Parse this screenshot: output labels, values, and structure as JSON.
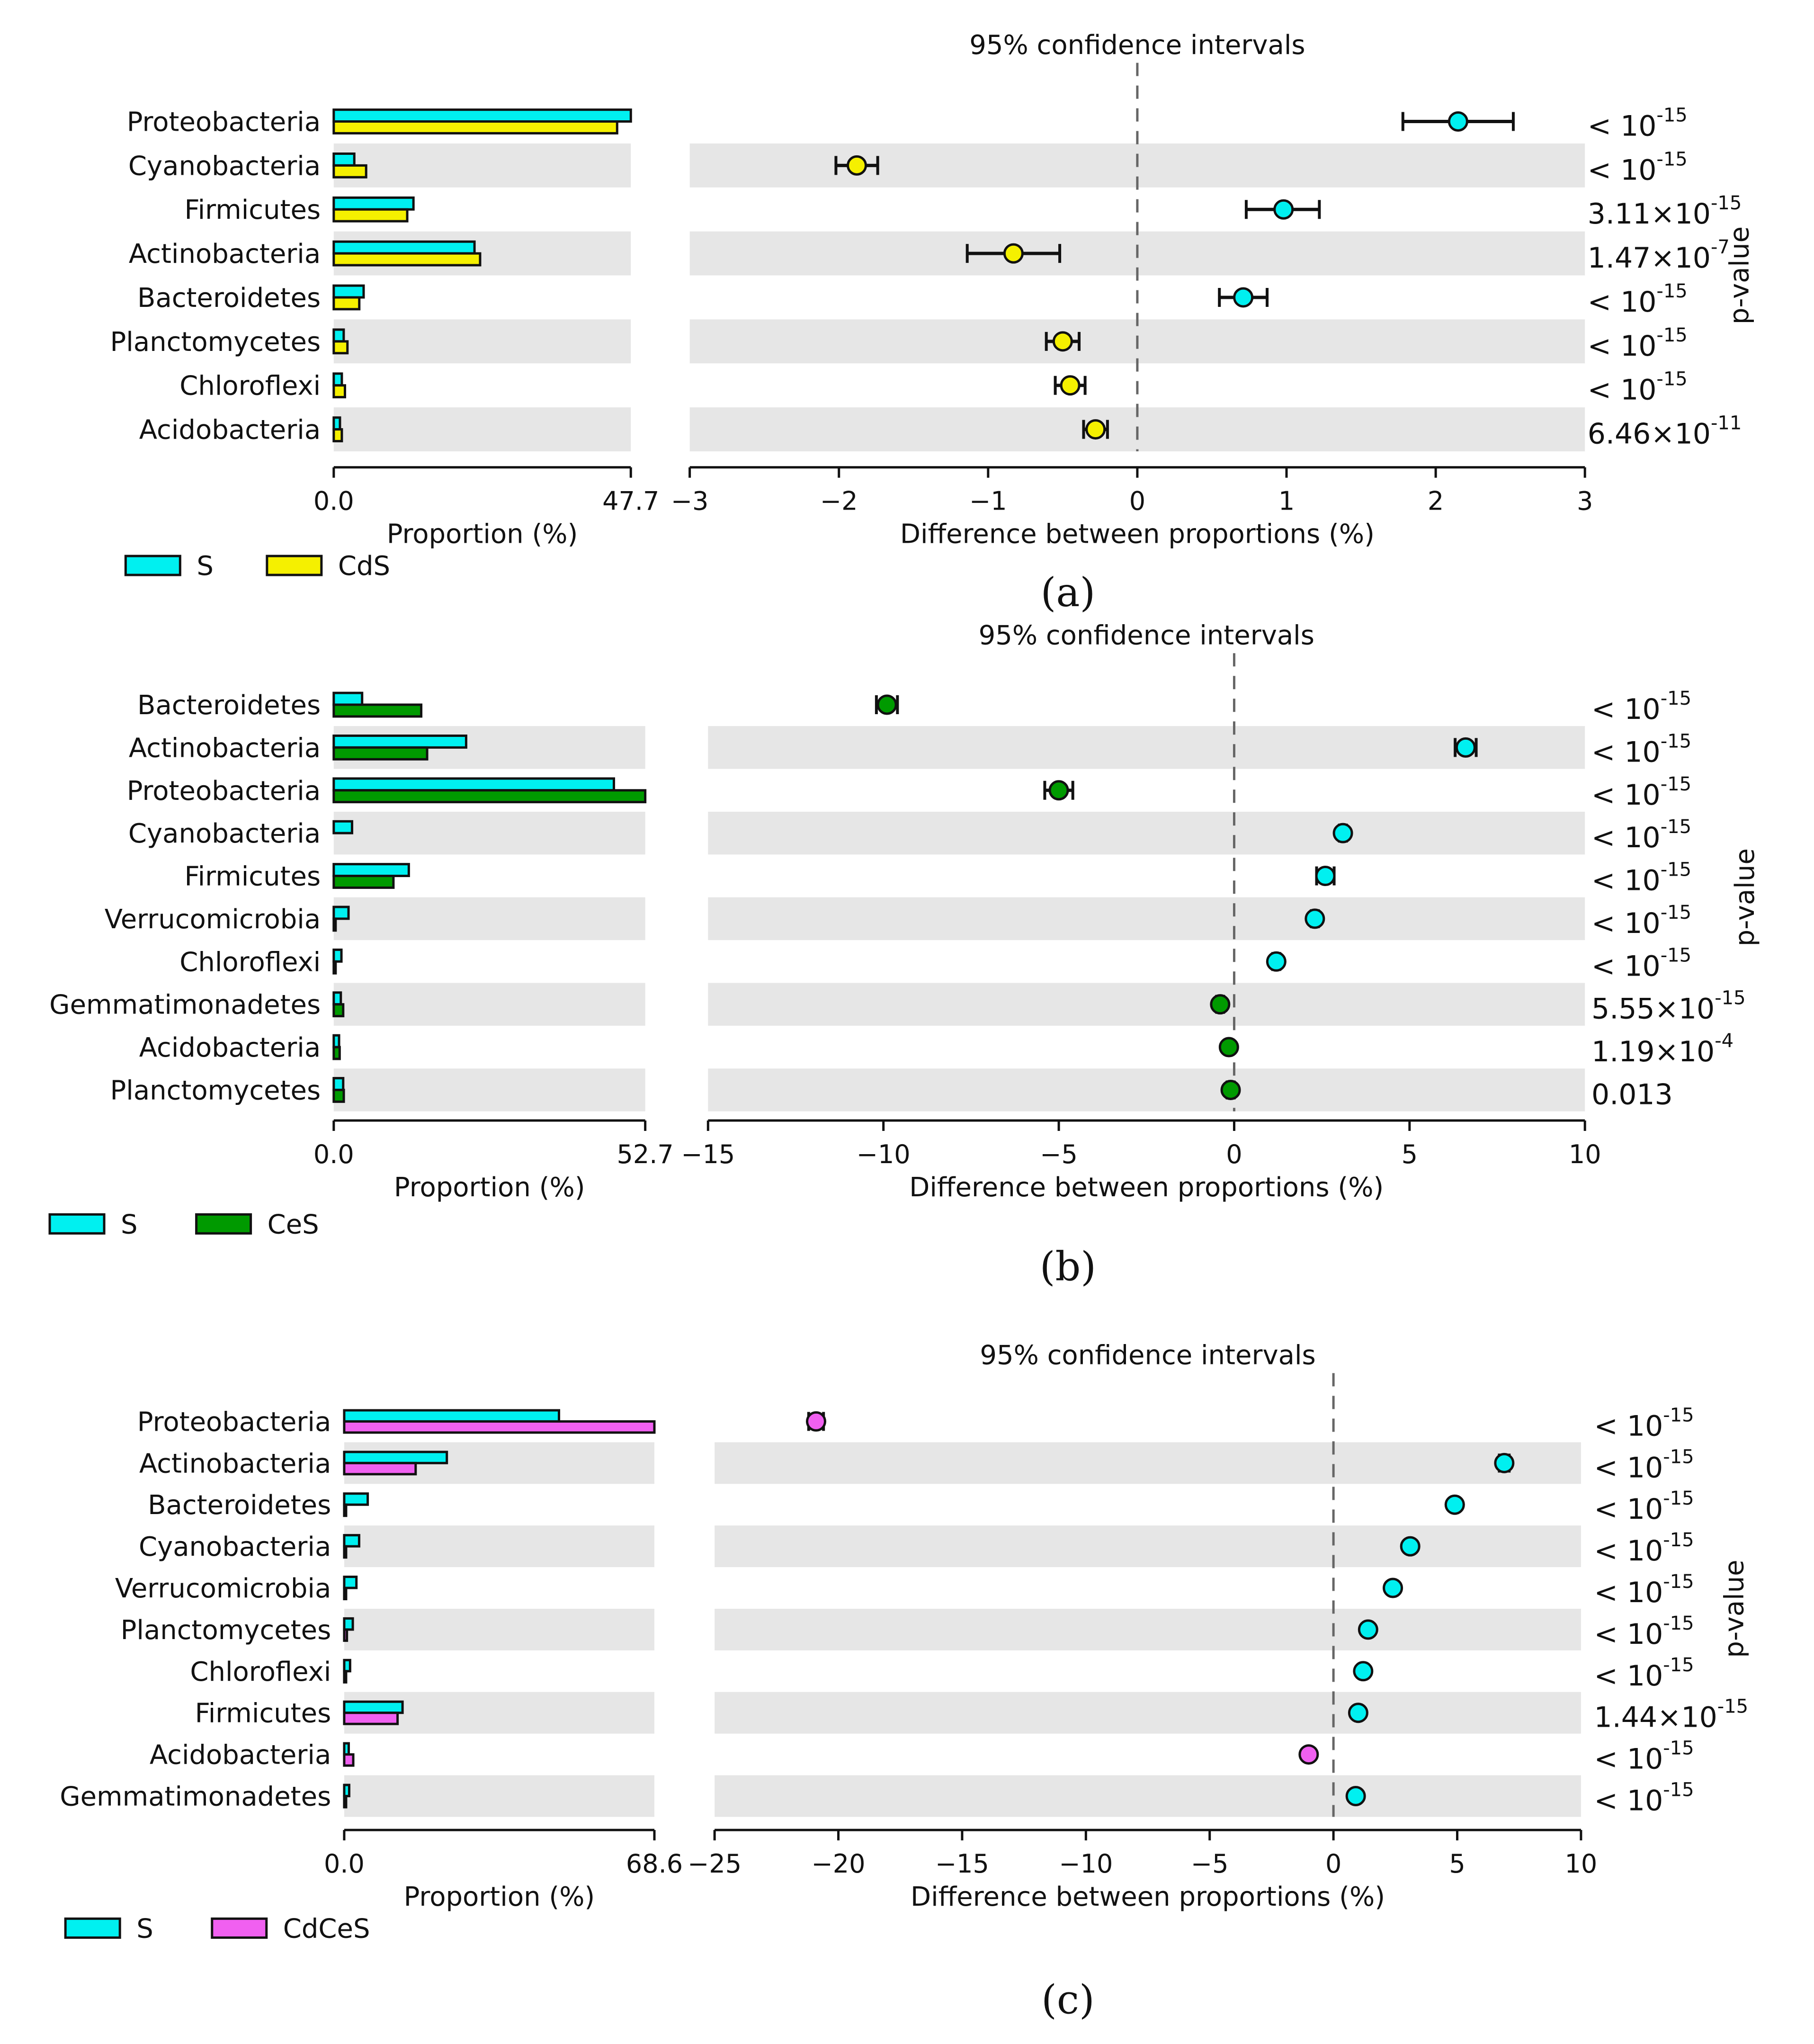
{
  "figure": {
    "panels": [
      {
        "id": "a",
        "caption": "(a)",
        "ci_title": "95% confidence intervals",
        "pvalue_label": "p-value",
        "prop_axis_label": "Proportion (%)",
        "prop_ticks": [
          "0.0",
          "47.7"
        ],
        "diff_axis_label": "Difference between proportions (%)",
        "diff_ticks": [
          "−3",
          "−2",
          "−1",
          "0",
          "1",
          "2",
          "3"
        ],
        "legend": [
          {
            "label": "S",
            "color": "#00F0F0"
          },
          {
            "label": "CdS",
            "color": "#F5F000"
          }
        ]
      },
      {
        "id": "b",
        "caption": "(b)",
        "ci_title": "95% confidence intervals",
        "pvalue_label": "p-value",
        "prop_axis_label": "Proportion (%)",
        "prop_ticks": [
          "0.0",
          "52.7"
        ],
        "diff_axis_label": "Difference between proportions (%)",
        "diff_ticks": [
          "−15",
          "−10",
          "−5",
          "0",
          "5",
          "10"
        ],
        "legend": [
          {
            "label": "S",
            "color": "#00F0F0"
          },
          {
            "label": "CeS",
            "color": "#009A00"
          }
        ]
      },
      {
        "id": "c",
        "caption": "(c)",
        "ci_title": "95% confidence intervals",
        "pvalue_label": "p-value",
        "prop_axis_label": "Proportion (%)",
        "prop_ticks": [
          "0.0",
          "68.6"
        ],
        "diff_axis_label": "Difference between proportions (%)",
        "diff_ticks": [
          "−25",
          "−20",
          "−15",
          "−10",
          "−5",
          "0",
          "5",
          "10"
        ],
        "legend": [
          {
            "label": "S",
            "color": "#00F0F0"
          },
          {
            "label": "CdCeS",
            "color": "#F060F0"
          }
        ]
      }
    ]
  },
  "chart_data": [
    {
      "type": "bar",
      "title": "95% confidence intervals",
      "xlabel": "Proportion (%) / Difference between proportions (%)",
      "ylabel": "p-value",
      "prop_max": 47.7,
      "diff_range": [
        -3,
        3
      ],
      "series_names": [
        "S",
        "CdS"
      ],
      "rows": [
        {
          "name": "Proteobacteria",
          "s": 47.7,
          "t": 45.5,
          "diff": 2.15,
          "lo": 1.78,
          "hi": 2.52,
          "p_base": "< 10",
          "p_exp": "-15"
        },
        {
          "name": "Cyanobacteria",
          "s": 3.3,
          "t": 5.2,
          "diff": -1.88,
          "lo": -2.02,
          "hi": -1.74,
          "p_base": "< 10",
          "p_exp": "-15"
        },
        {
          "name": "Firmicutes",
          "s": 12.8,
          "t": 11.8,
          "diff": 0.98,
          "lo": 0.73,
          "hi": 1.22,
          "p_base": "3.11×10",
          "p_exp": "-15"
        },
        {
          "name": "Actinobacteria",
          "s": 22.6,
          "t": 23.5,
          "diff": -0.83,
          "lo": -1.14,
          "hi": -0.52,
          "p_base": "1.47×10",
          "p_exp": "-7"
        },
        {
          "name": "Bacteroidetes",
          "s": 4.8,
          "t": 4.1,
          "diff": 0.71,
          "lo": 0.55,
          "hi": 0.87,
          "p_base": "< 10",
          "p_exp": "-15"
        },
        {
          "name": "Planctomycetes",
          "s": 1.6,
          "t": 2.2,
          "diff": -0.5,
          "lo": -0.61,
          "hi": -0.39,
          "p_base": "< 10",
          "p_exp": "-15"
        },
        {
          "name": "Chloroflexi",
          "s": 1.3,
          "t": 1.8,
          "diff": -0.45,
          "lo": -0.55,
          "hi": -0.35,
          "p_base": "< 10",
          "p_exp": "-15"
        },
        {
          "name": "Acidobacteria",
          "s": 1.0,
          "t": 1.3,
          "diff": -0.28,
          "lo": -0.36,
          "hi": -0.2,
          "p_base": "6.46×10",
          "p_exp": "-11"
        }
      ]
    },
    {
      "type": "bar",
      "title": "95% confidence intervals",
      "xlabel": "Proportion (%) / Difference between proportions (%)",
      "ylabel": "p-value",
      "prop_max": 52.7,
      "diff_range": [
        -15,
        10
      ],
      "series_names": [
        "S",
        "CeS"
      ],
      "rows": [
        {
          "name": "Bacteroidetes",
          "s": 4.8,
          "t": 14.8,
          "diff": -9.9,
          "lo": -10.2,
          "hi": -9.6,
          "p_base": "< 10",
          "p_exp": "-15"
        },
        {
          "name": "Actinobacteria",
          "s": 22.4,
          "t": 15.8,
          "diff": 6.6,
          "lo": 6.3,
          "hi": 6.9,
          "p_base": "< 10",
          "p_exp": "-15"
        },
        {
          "name": "Proteobacteria",
          "s": 47.4,
          "t": 52.7,
          "diff": -5.0,
          "lo": -5.4,
          "hi": -4.6,
          "p_base": "< 10",
          "p_exp": "-15"
        },
        {
          "name": "Cyanobacteria",
          "s": 3.1,
          "t": 0.0,
          "diff": 3.1,
          "lo": 3.0,
          "hi": 3.2,
          "p_base": "< 10",
          "p_exp": "-15"
        },
        {
          "name": "Firmicutes",
          "s": 12.7,
          "t": 10.1,
          "diff": 2.6,
          "lo": 2.35,
          "hi": 2.85,
          "p_base": "< 10",
          "p_exp": "-15"
        },
        {
          "name": "Verrucomicrobia",
          "s": 2.5,
          "t": 0.2,
          "diff": 2.3,
          "lo": 2.2,
          "hi": 2.4,
          "p_base": "< 10",
          "p_exp": "-15"
        },
        {
          "name": "Chloroflexi",
          "s": 1.3,
          "t": 0.1,
          "diff": 1.2,
          "lo": 1.1,
          "hi": 1.3,
          "p_base": "< 10",
          "p_exp": "-15"
        },
        {
          "name": "Gemmatimonadetes",
          "s": 1.2,
          "t": 1.6,
          "diff": -0.4,
          "lo": -0.5,
          "hi": -0.3,
          "p_base": "5.55×10",
          "p_exp": "-15"
        },
        {
          "name": "Acidobacteria",
          "s": 0.9,
          "t": 1.0,
          "diff": -0.15,
          "lo": -0.2,
          "hi": -0.1,
          "p_base": "1.19×10",
          "p_exp": "-4"
        },
        {
          "name": "Planctomycetes",
          "s": 1.6,
          "t": 1.7,
          "diff": -0.1,
          "lo": -0.2,
          "hi": 0.0,
          "p_base": "0.013",
          "p_exp": ""
        }
      ]
    },
    {
      "type": "bar",
      "title": "95% confidence intervals",
      "xlabel": "Proportion (%) / Difference between proportions (%)",
      "ylabel": "p-value",
      "prop_max": 68.6,
      "diff_range": [
        -25,
        10
      ],
      "series_names": [
        "S",
        "CdCeS"
      ],
      "rows": [
        {
          "name": "Proteobacteria",
          "s": 47.5,
          "t": 68.6,
          "diff": -20.9,
          "lo": -21.2,
          "hi": -20.6,
          "p_base": "< 10",
          "p_exp": "-15"
        },
        {
          "name": "Actinobacteria",
          "s": 22.7,
          "t": 15.8,
          "diff": 6.9,
          "lo": 6.7,
          "hi": 7.1,
          "p_base": "< 10",
          "p_exp": "-15"
        },
        {
          "name": "Bacteroidetes",
          "s": 5.2,
          "t": 0.3,
          "diff": 4.9,
          "lo": 4.8,
          "hi": 5.0,
          "p_base": "< 10",
          "p_exp": "-15"
        },
        {
          "name": "Cyanobacteria",
          "s": 3.3,
          "t": 0.2,
          "diff": 3.1,
          "lo": 3.0,
          "hi": 3.2,
          "p_base": "< 10",
          "p_exp": "-15"
        },
        {
          "name": "Verrucomicrobia",
          "s": 2.7,
          "t": 0.3,
          "diff": 2.4,
          "lo": 2.3,
          "hi": 2.5,
          "p_base": "< 10",
          "p_exp": "-15"
        },
        {
          "name": "Planctomycetes",
          "s": 1.9,
          "t": 0.6,
          "diff": 1.4,
          "lo": 1.3,
          "hi": 1.5,
          "p_base": "< 10",
          "p_exp": "-15"
        },
        {
          "name": "Chloroflexi",
          "s": 1.3,
          "t": 0.1,
          "diff": 1.2,
          "lo": 1.1,
          "hi": 1.3,
          "p_base": "< 10",
          "p_exp": "-15"
        },
        {
          "name": "Firmicutes",
          "s": 12.9,
          "t": 11.8,
          "diff": 1.0,
          "lo": 0.9,
          "hi": 1.1,
          "p_base": "1.44×10",
          "p_exp": "-15"
        },
        {
          "name": "Acidobacteria",
          "s": 1.0,
          "t": 2.0,
          "diff": -1.0,
          "lo": -1.1,
          "hi": -0.9,
          "p_base": "< 10",
          "p_exp": "-15"
        },
        {
          "name": "Gemmatimonadetes",
          "s": 1.1,
          "t": 0.2,
          "diff": 0.9,
          "lo": 0.8,
          "hi": 1.0,
          "p_base": "< 10",
          "p_exp": "-15"
        }
      ]
    }
  ]
}
